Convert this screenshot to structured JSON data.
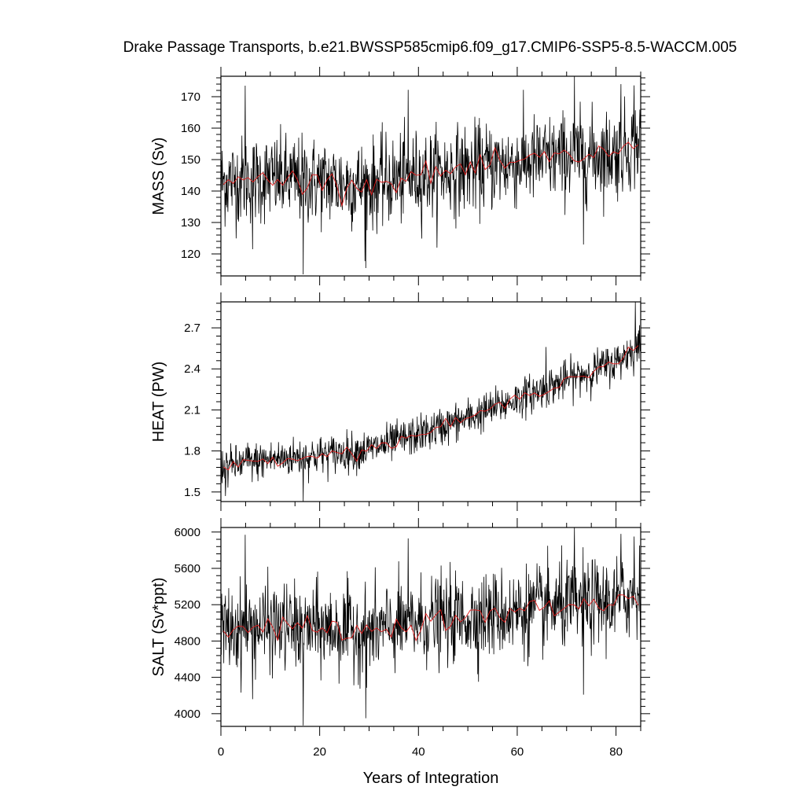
{
  "chart_data": {
    "title": "Drake Passage Transports, b.e21.BWSSP585cmip6.f09_g17.CMIP6-SSP5-8.5-WACCM.005",
    "xlabel": "Years of Integration",
    "x_range": [
      0,
      85
    ],
    "x_ticks": [
      0,
      20,
      40,
      60,
      80
    ],
    "x_step": 0.0833333,
    "line_colors": {
      "raw": "#000000",
      "smoothed": "#e11b1b"
    },
    "panels": [
      {
        "type": "line",
        "ylabel": "MASS (Sv)",
        "ylim": [
          113,
          176.5
        ],
        "y_ticks": [
          120,
          130,
          140,
          150,
          160,
          170
        ],
        "y_tick_labels": [
          "120",
          "130",
          "140",
          "150",
          "160",
          "170"
        ],
        "series": [
          {
            "kind": "monthly",
            "anchors": [
              {
                "x": 0,
                "y": 143
              },
              {
                "x": 10,
                "y": 144
              },
              {
                "x": 20,
                "y": 143
              },
              {
                "x": 30,
                "y": 142
              },
              {
                "x": 40,
                "y": 145
              },
              {
                "x": 50,
                "y": 147
              },
              {
                "x": 60,
                "y": 149
              },
              {
                "x": 70,
                "y": 151
              },
              {
                "x": 80,
                "y": 152
              },
              {
                "x": 85,
                "y": 156
              }
            ],
            "noise_sd": 7.0,
            "spikes": [
              {
                "x": 4.9,
                "y": 173.5
              },
              {
                "x": 6.4,
                "y": 121.5
              },
              {
                "x": 16.7,
                "y": 113.5
              },
              {
                "x": 29.3,
                "y": 115.5
              },
              {
                "x": 37.9,
                "y": 172.2
              },
              {
                "x": 71.6,
                "y": 176.5
              },
              {
                "x": 73.4,
                "y": 123.0
              },
              {
                "x": 81.0,
                "y": 174.0
              },
              {
                "x": 83.7,
                "y": 173.6
              }
            ]
          },
          {
            "kind": "annual_mean",
            "anchors": [
              {
                "x": 0,
                "y": 143
              },
              {
                "x": 10,
                "y": 144
              },
              {
                "x": 20,
                "y": 143
              },
              {
                "x": 30,
                "y": 142
              },
              {
                "x": 40,
                "y": 145
              },
              {
                "x": 50,
                "y": 147
              },
              {
                "x": 60,
                "y": 149
              },
              {
                "x": 70,
                "y": 151
              },
              {
                "x": 80,
                "y": 152
              },
              {
                "x": 85,
                "y": 156
              }
            ],
            "noise_sd": 1.8
          }
        ]
      },
      {
        "type": "line",
        "ylabel": "HEAT (PW)",
        "ylim": [
          1.43,
          2.89
        ],
        "y_ticks": [
          1.5,
          1.8,
          2.1,
          2.4,
          2.7
        ],
        "y_tick_labels": [
          "1.5",
          "1.8",
          "2.1",
          "2.4",
          "2.7"
        ],
        "series": [
          {
            "kind": "monthly",
            "anchors": [
              {
                "x": 0,
                "y": 1.68
              },
              {
                "x": 10,
                "y": 1.74
              },
              {
                "x": 20,
                "y": 1.77
              },
              {
                "x": 30,
                "y": 1.81
              },
              {
                "x": 40,
                "y": 1.92
              },
              {
                "x": 50,
                "y": 2.04
              },
              {
                "x": 60,
                "y": 2.18
              },
              {
                "x": 70,
                "y": 2.32
              },
              {
                "x": 80,
                "y": 2.45
              },
              {
                "x": 85,
                "y": 2.58
              }
            ],
            "noise_sd": 0.07,
            "spikes": [
              {
                "x": 0.9,
                "y": 1.47
              },
              {
                "x": 16.7,
                "y": 1.43
              },
              {
                "x": 83.9,
                "y": 2.89
              },
              {
                "x": 65.8,
                "y": 2.56
              },
              {
                "x": 5.4,
                "y": 1.86
              }
            ]
          },
          {
            "kind": "annual_mean",
            "anchors": [
              {
                "x": 0,
                "y": 1.68
              },
              {
                "x": 10,
                "y": 1.74
              },
              {
                "x": 20,
                "y": 1.77
              },
              {
                "x": 30,
                "y": 1.81
              },
              {
                "x": 40,
                "y": 1.92
              },
              {
                "x": 50,
                "y": 2.04
              },
              {
                "x": 60,
                "y": 2.18
              },
              {
                "x": 70,
                "y": 2.32
              },
              {
                "x": 80,
                "y": 2.45
              },
              {
                "x": 85,
                "y": 2.58
              }
            ],
            "noise_sd": 0.02
          }
        ]
      },
      {
        "type": "line",
        "ylabel": "SALT (Sv*ppt)",
        "ylim": [
          3860,
          6050
        ],
        "y_ticks": [
          4000,
          4400,
          4800,
          5200,
          5600,
          6000
        ],
        "y_tick_labels": [
          "4000",
          "4400",
          "4800",
          "5200",
          "5600",
          "6000"
        ],
        "series": [
          {
            "kind": "monthly",
            "anchors": [
              {
                "x": 0,
                "y": 4920
              },
              {
                "x": 10,
                "y": 4960
              },
              {
                "x": 20,
                "y": 4940
              },
              {
                "x": 30,
                "y": 4900
              },
              {
                "x": 40,
                "y": 5010
              },
              {
                "x": 50,
                "y": 5060
              },
              {
                "x": 60,
                "y": 5120
              },
              {
                "x": 70,
                "y": 5190
              },
              {
                "x": 80,
                "y": 5230
              },
              {
                "x": 85,
                "y": 5350
              }
            ],
            "noise_sd": 240,
            "spikes": [
              {
                "x": 4.9,
                "y": 5970
              },
              {
                "x": 6.4,
                "y": 4160
              },
              {
                "x": 16.7,
                "y": 3870
              },
              {
                "x": 29.3,
                "y": 3950
              },
              {
                "x": 37.9,
                "y": 5930
              },
              {
                "x": 71.6,
                "y": 6050
              },
              {
                "x": 73.4,
                "y": 4210
              },
              {
                "x": 81.0,
                "y": 5980
              },
              {
                "x": 83.7,
                "y": 5950
              }
            ]
          },
          {
            "kind": "annual_mean",
            "anchors": [
              {
                "x": 0,
                "y": 4920
              },
              {
                "x": 10,
                "y": 4960
              },
              {
                "x": 20,
                "y": 4940
              },
              {
                "x": 30,
                "y": 4900
              },
              {
                "x": 40,
                "y": 5010
              },
              {
                "x": 50,
                "y": 5060
              },
              {
                "x": 60,
                "y": 5120
              },
              {
                "x": 70,
                "y": 5190
              },
              {
                "x": 80,
                "y": 5230
              },
              {
                "x": 85,
                "y": 5350
              }
            ],
            "noise_sd": 60
          }
        ]
      }
    ]
  }
}
